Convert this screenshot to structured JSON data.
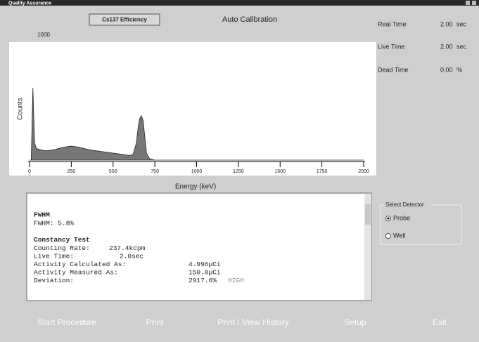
{
  "window": {
    "title": "Quality Assurance"
  },
  "header": {
    "button": "Cs137 Efficiency",
    "title": "Auto Calibration"
  },
  "stats": [
    {
      "label": "Real Time",
      "value": "2.00",
      "unit": "sec"
    },
    {
      "label": "Live Time",
      "value": "2.00",
      "unit": "sec"
    },
    {
      "label": "Dead Time",
      "value": "0.00",
      "unit": "%"
    }
  ],
  "chart_data": {
    "type": "area",
    "x_label": "Energy (keV)",
    "y_label": "Counts",
    "x": [
      0,
      10,
      20,
      30,
      40,
      60,
      100,
      150,
      200,
      250,
      300,
      350,
      400,
      450,
      500,
      550,
      600,
      620,
      640,
      650,
      660,
      670,
      680,
      690,
      700,
      720,
      750,
      2000
    ],
    "values": [
      0,
      0,
      620,
      150,
      100,
      90,
      80,
      90,
      110,
      120,
      110,
      90,
      80,
      70,
      60,
      50,
      40,
      50,
      150,
      280,
      360,
      380,
      340,
      200,
      60,
      10,
      0,
      0
    ],
    "color": "#777777",
    "xlim": [
      0,
      2000
    ],
    "xticks": [
      0,
      250,
      500,
      750,
      1000,
      1250,
      1500,
      1750,
      2000
    ],
    "ylim": [
      0,
      1000
    ],
    "yticks": [
      1000
    ]
  },
  "report": {
    "sections": [
      {
        "heading": "FWHM",
        "lines": [
          {
            "label": "FWHM: 5.8%"
          }
        ]
      },
      {
        "heading": "Constancy Test",
        "lines": [
          {
            "label": "Counting Rate:",
            "value": "237.4kcpm"
          },
          {
            "label": "Live Time:",
            "value": "2.0sec"
          },
          {
            "label": "Activity Calculated As:",
            "value": "4.996µCi"
          },
          {
            "label": "Activity Measured As:",
            "value": "150.8µCi"
          },
          {
            "label": "Deviation:",
            "value": "2917.6%",
            "flag": "HIGH"
          }
        ]
      }
    ]
  },
  "detector": {
    "title": "Select Detector",
    "options": [
      "Probe",
      "Well"
    ],
    "selected": 0
  },
  "buttons": [
    "Start Procedure",
    "Print",
    "Print / View History",
    "Setup",
    "Exit"
  ]
}
